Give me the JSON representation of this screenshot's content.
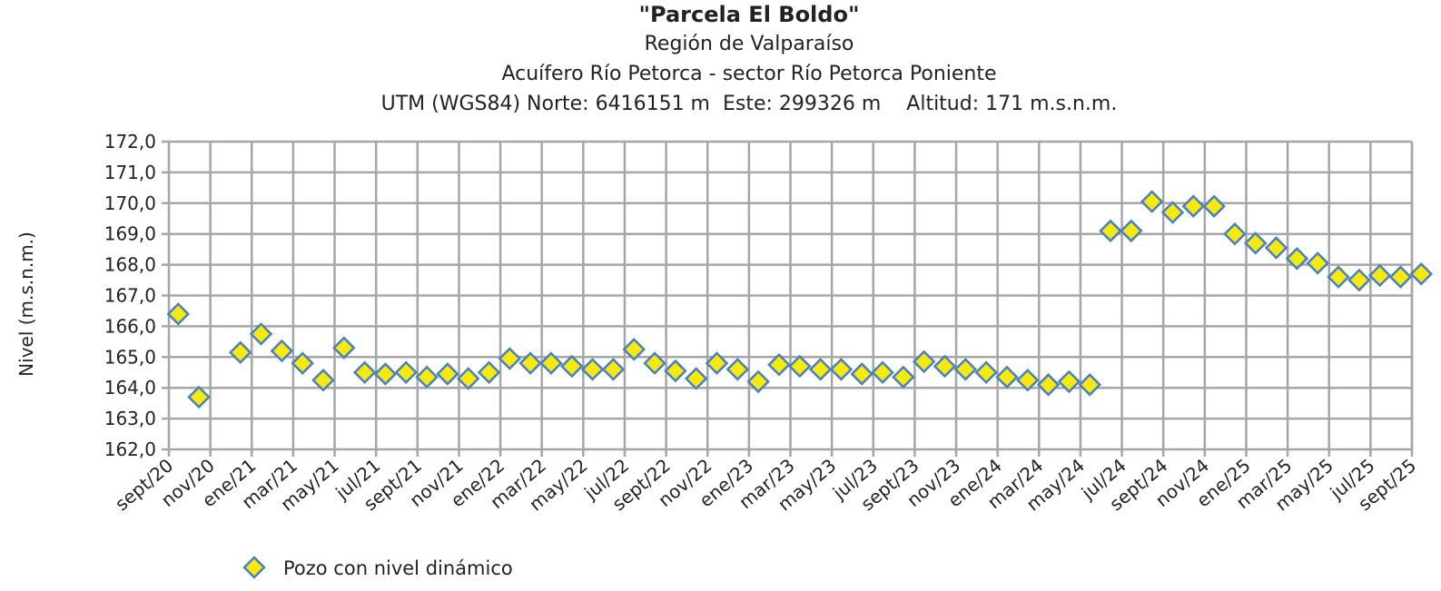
{
  "chart_data": {
    "type": "scatter",
    "title": "\"Parcela El Boldo\"",
    "subtitles": [
      "Región de Valparaíso",
      "Acuífero Río Petorca - sector Río Petorca Poniente",
      "UTM (WGS84) Norte: 6416151 m  Este: 299326 m    Altitud: 171 m.s.n.m."
    ],
    "ylabel": "Nivel (m.s.n.m.)",
    "xlabel": "",
    "ylim": [
      162,
      172
    ],
    "xlim": [
      "2020-09",
      "2025-09"
    ],
    "grid": true,
    "y_ticks": [
      "162,0",
      "163,0",
      "164,0",
      "165,0",
      "166,0",
      "167,0",
      "168,0",
      "169,0",
      "170,0",
      "171,0",
      "172,0"
    ],
    "x_ticks": [
      "sept/20",
      "nov/20",
      "ene/21",
      "mar/21",
      "may/21",
      "jul/21",
      "sept/21",
      "nov/21",
      "ene/22",
      "mar/22",
      "may/22",
      "jul/22",
      "sept/22",
      "nov/22",
      "ene/23",
      "mar/23",
      "may/23",
      "jul/23",
      "sept/23",
      "nov/23",
      "ene/24",
      "mar/24",
      "may/24",
      "jul/24",
      "sept/24",
      "nov/24",
      "ene/25",
      "mar/25",
      "may/25",
      "jul/25",
      "sept/25"
    ],
    "legend": {
      "position": "bottom-left",
      "entries": [
        "Pozo con nivel dinámico"
      ]
    },
    "marker": {
      "shape": "diamond",
      "fill": "#f5e90f",
      "stroke": "#4a7fc1"
    },
    "series": [
      {
        "name": "Pozo con nivel dinámico",
        "x": [
          "2020-09",
          "2020-10",
          "2020-12",
          "2021-01",
          "2021-02",
          "2021-03",
          "2021-04",
          "2021-05",
          "2021-06",
          "2021-07",
          "2021-08",
          "2021-09",
          "2021-10",
          "2021-11",
          "2021-12",
          "2022-01",
          "2022-02",
          "2022-03",
          "2022-04",
          "2022-05",
          "2022-06",
          "2022-07",
          "2022-08",
          "2022-09",
          "2022-10",
          "2022-11",
          "2022-12",
          "2023-01",
          "2023-02",
          "2023-03",
          "2023-04",
          "2023-05",
          "2023-06",
          "2023-07",
          "2023-08",
          "2023-09",
          "2023-10",
          "2023-11",
          "2023-12",
          "2024-01",
          "2024-02",
          "2024-03",
          "2024-04",
          "2024-05",
          "2024-06",
          "2024-07",
          "2024-08",
          "2024-09",
          "2024-10",
          "2024-11",
          "2024-12",
          "2025-01",
          "2025-02",
          "2025-03",
          "2025-04",
          "2025-05",
          "2025-06",
          "2025-07",
          "2025-08",
          "2025-09"
        ],
        "y": [
          166.4,
          163.7,
          165.15,
          165.75,
          165.2,
          164.8,
          164.25,
          165.3,
          164.5,
          164.45,
          164.5,
          164.35,
          164.45,
          164.3,
          164.5,
          164.95,
          164.8,
          164.8,
          164.7,
          164.6,
          164.6,
          165.25,
          164.8,
          164.55,
          164.3,
          164.8,
          164.6,
          164.2,
          164.75,
          164.7,
          164.6,
          164.6,
          164.45,
          164.5,
          164.35,
          164.85,
          164.7,
          164.6,
          164.5,
          164.35,
          164.25,
          164.1,
          164.2,
          164.1,
          169.1,
          169.1,
          170.05,
          169.7,
          169.9,
          169.9,
          169.0,
          168.7,
          168.55,
          168.2,
          168.05,
          167.6,
          167.5,
          167.65,
          167.6,
          167.7
        ]
      }
    ]
  }
}
